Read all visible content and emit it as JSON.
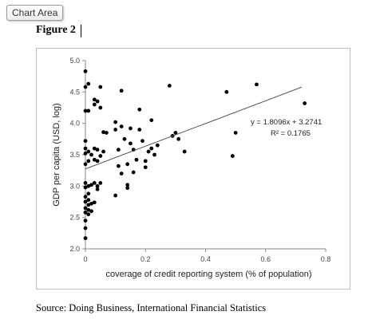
{
  "toolbar": {
    "chart_area_label": "Chart Area"
  },
  "figure": {
    "title": "Figure 2"
  },
  "source": "Source: Doing Business, International Financial Statistics",
  "chart_data": {
    "type": "scatter",
    "title": "",
    "xlabel": "coverage of credit reporting system (% of population)",
    "ylabel": "GDP per capita (USD, log)",
    "xlim": [
      0,
      0.8
    ],
    "ylim": [
      2.0,
      5.0
    ],
    "xticks": [
      "0",
      "0.2",
      "0.4",
      "0.6",
      "0.8"
    ],
    "yticks": [
      "2.0",
      "2.5",
      "3.0",
      "3.5",
      "4.0",
      "4.5",
      "5.0"
    ],
    "grid": false,
    "marker_color": "#000000",
    "trendline": {
      "slope": 1.8096,
      "intercept": 3.2741,
      "equation": "y = 1.8096x + 3.2741",
      "r_squared": "R² = 0.1765",
      "x_range": [
        0,
        0.72
      ]
    },
    "points": [
      [
        0.0,
        4.83
      ],
      [
        0.0,
        4.58
      ],
      [
        0.0,
        4.2
      ],
      [
        0.0,
        3.72
      ],
      [
        0.0,
        3.6
      ],
      [
        0.0,
        3.52
      ],
      [
        0.0,
        3.35
      ],
      [
        0.0,
        3.05
      ],
      [
        0.0,
        2.98
      ],
      [
        0.0,
        2.83
      ],
      [
        0.0,
        2.75
      ],
      [
        0.0,
        2.65
      ],
      [
        0.0,
        2.58
      ],
      [
        0.0,
        2.45
      ],
      [
        0.0,
        2.33
      ],
      [
        0.0,
        2.17
      ],
      [
        0.01,
        4.63
      ],
      [
        0.01,
        4.2
      ],
      [
        0.01,
        3.55
      ],
      [
        0.01,
        3.4
      ],
      [
        0.01,
        3.0
      ],
      [
        0.01,
        2.88
      ],
      [
        0.01,
        2.78
      ],
      [
        0.01,
        2.7
      ],
      [
        0.01,
        2.62
      ],
      [
        0.01,
        2.55
      ],
      [
        0.02,
        3.5
      ],
      [
        0.02,
        3.02
      ],
      [
        0.02,
        2.72
      ],
      [
        0.02,
        2.6
      ],
      [
        0.03,
        4.38
      ],
      [
        0.03,
        4.3
      ],
      [
        0.03,
        3.6
      ],
      [
        0.03,
        3.42
      ],
      [
        0.03,
        3.05
      ],
      [
        0.03,
        2.74
      ],
      [
        0.04,
        4.35
      ],
      [
        0.04,
        3.58
      ],
      [
        0.04,
        3.4
      ],
      [
        0.04,
        3.0
      ],
      [
        0.04,
        2.95
      ],
      [
        0.05,
        4.58
      ],
      [
        0.05,
        4.25
      ],
      [
        0.05,
        3.48
      ],
      [
        0.05,
        3.05
      ],
      [
        0.06,
        3.86
      ],
      [
        0.06,
        3.55
      ],
      [
        0.07,
        3.85
      ],
      [
        0.1,
        4.02
      ],
      [
        0.1,
        3.9
      ],
      [
        0.1,
        2.85
      ],
      [
        0.11,
        3.58
      ],
      [
        0.11,
        3.32
      ],
      [
        0.12,
        4.52
      ],
      [
        0.12,
        3.95
      ],
      [
        0.12,
        3.2
      ],
      [
        0.13,
        3.75
      ],
      [
        0.14,
        3.35
      ],
      [
        0.14,
        3.02
      ],
      [
        0.14,
        2.97
      ],
      [
        0.15,
        3.92
      ],
      [
        0.15,
        3.68
      ],
      [
        0.16,
        3.58
      ],
      [
        0.16,
        3.22
      ],
      [
        0.17,
        3.42
      ],
      [
        0.18,
        4.22
      ],
      [
        0.18,
        3.9
      ],
      [
        0.19,
        3.72
      ],
      [
        0.2,
        3.4
      ],
      [
        0.2,
        3.3
      ],
      [
        0.21,
        3.55
      ],
      [
        0.22,
        4.05
      ],
      [
        0.22,
        3.6
      ],
      [
        0.23,
        3.5
      ],
      [
        0.24,
        3.65
      ],
      [
        0.28,
        4.6
      ],
      [
        0.29,
        3.8
      ],
      [
        0.3,
        3.85
      ],
      [
        0.31,
        3.75
      ],
      [
        0.33,
        3.55
      ],
      [
        0.47,
        4.5
      ],
      [
        0.49,
        3.48
      ],
      [
        0.5,
        3.85
      ],
      [
        0.57,
        4.62
      ],
      [
        0.73,
        4.32
      ]
    ]
  }
}
